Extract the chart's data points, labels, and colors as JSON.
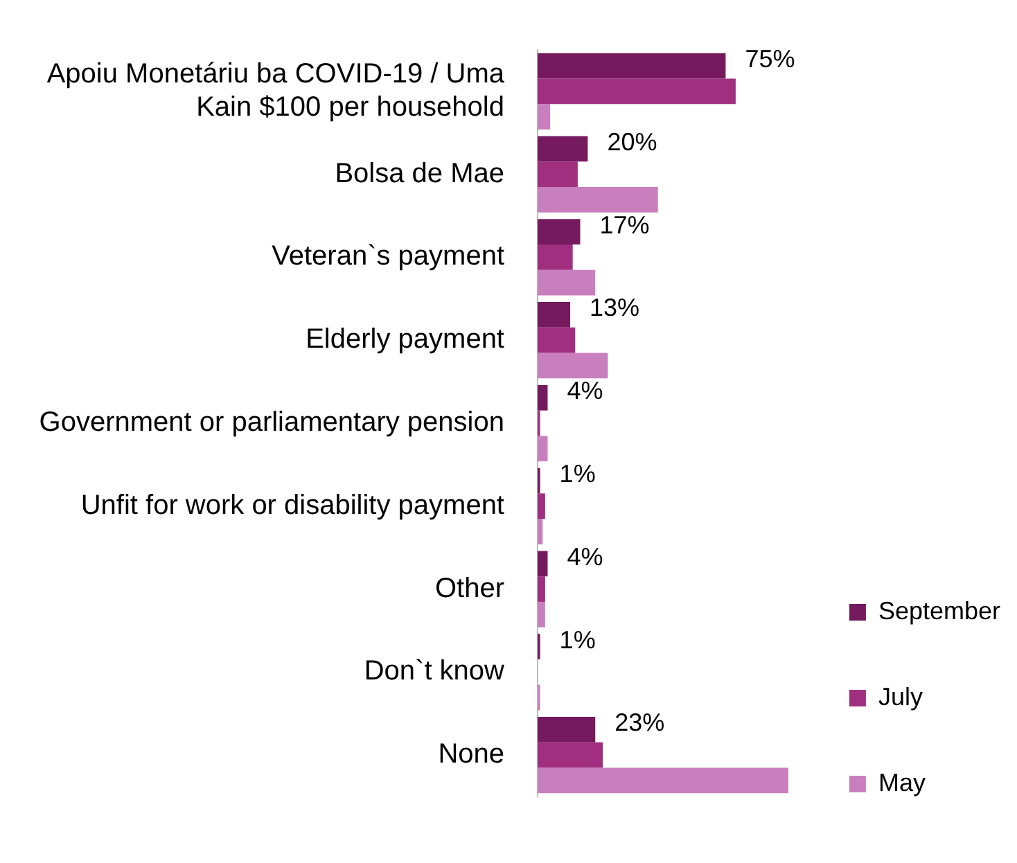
{
  "chart_data": {
    "type": "bar",
    "orientation": "horizontal",
    "categories": [
      "Apoiu Monetáriu ba COVID-19 / Uma Kain $100 per household",
      "Bolsa de Mae",
      "Veteran`s payment",
      "Elderly payment",
      "Government or parliamentary pension",
      "Unfit for work or disability payment",
      "Other",
      "Don`t know",
      "None"
    ],
    "series": [
      {
        "name": "September",
        "color": "#761a5f",
        "values": [
          75,
          20,
          17,
          13,
          4,
          1,
          4,
          1,
          23
        ],
        "value_labels": [
          "75%",
          "20%",
          "17%",
          "13%",
          "4%",
          "1%",
          "4%",
          "1%",
          "23%"
        ]
      },
      {
        "name": "July",
        "color": "#a0307f",
        "values": [
          79,
          16,
          14,
          15,
          1,
          3,
          3,
          0,
          26
        ]
      },
      {
        "name": "May",
        "color": "#c97fbd",
        "values": [
          5,
          48,
          23,
          28,
          4,
          2,
          3,
          1,
          100
        ]
      }
    ],
    "tick_labels": "y",
    "legend": "right",
    "grid": false
  }
}
